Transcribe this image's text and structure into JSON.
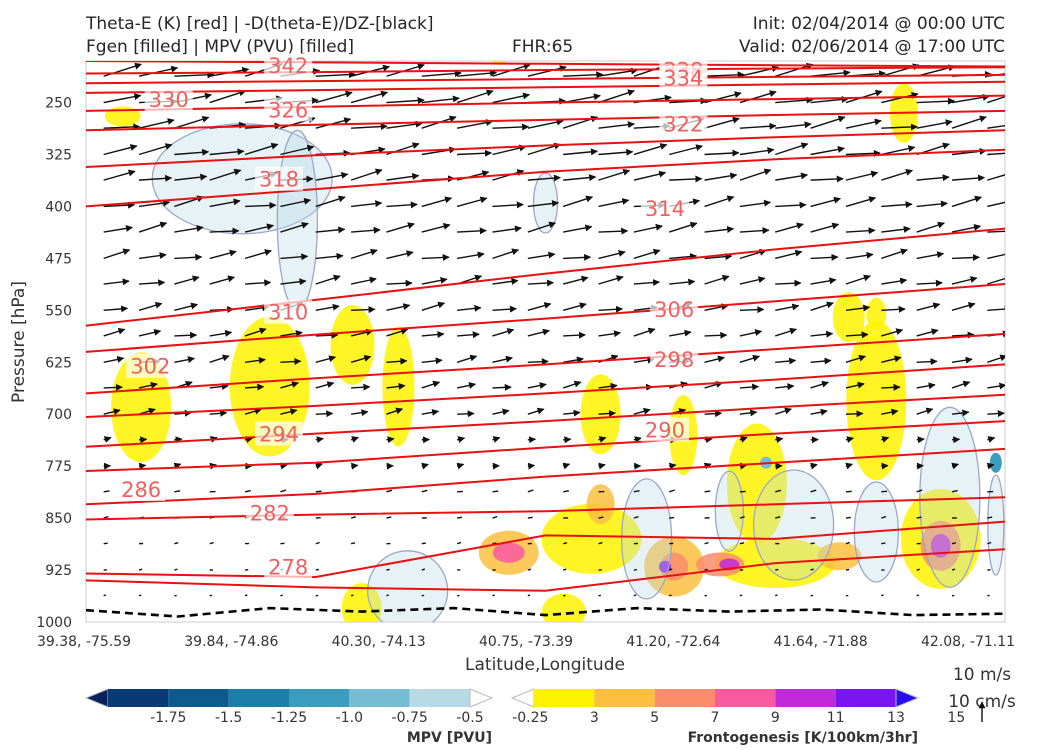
{
  "header": {
    "title_line1": "Theta-E (K) [red] | -D(theta-E)/DZ-[black]",
    "title_line2": "Fgen [filled] | MPV (PVU) [filled]",
    "fhr": "FHR:65",
    "init": "Init: 02/04/2014 @ 00:00 UTC",
    "valid": "Valid: 02/06/2014 @ 17:00 UTC"
  },
  "chart_data": {
    "type": "cross-section",
    "xlabel": "Latitude,Longitude",
    "ylabel": "Pressure [hPa]",
    "x_ticks": [
      "39.38, -75.59",
      "39.84, -74.86",
      "40.30, -74.13",
      "40.75, -73.39",
      "41.20, -72.64",
      "41.64, -71.88",
      "42.08, -71.11"
    ],
    "y_ticks": [
      250,
      325,
      400,
      475,
      550,
      625,
      700,
      775,
      850,
      925,
      1000
    ],
    "ylim": [
      1000,
      190
    ],
    "theta_e_contours": [
      {
        "label": "342",
        "p": [
          190,
          192,
          194,
          196,
          198
        ]
      },
      {
        "label": "338",
        "p": [
          208,
          206,
          203,
          201,
          199
        ]
      },
      {
        "label": "334",
        "p": [
          222,
          219,
          216,
          213,
          210
        ]
      },
      {
        "label": "330",
        "p": [
          236,
          232,
          228,
          224,
          220
        ]
      },
      {
        "label": "326",
        "p": [
          262,
          256,
          250,
          245,
          240
        ]
      },
      {
        "label": "322",
        "p": [
          290,
          282,
          275,
          268,
          262
        ]
      },
      {
        "label": "318",
        "p": [
          343,
          326,
          312,
          300,
          290
        ]
      },
      {
        "label": "314",
        "p": [
          400,
          375,
          350,
          332,
          318
        ]
      },
      {
        "label": "310",
        "p": [
          572,
          535,
          497,
          462,
          432
        ]
      },
      {
        "label": "306",
        "p": [
          610,
          585,
          562,
          537,
          512
        ]
      },
      {
        "label": "302",
        "p": [
          670,
          648,
          628,
          606,
          584
        ]
      },
      {
        "label": "298",
        "p": [
          704,
          688,
          670,
          650,
          628
        ]
      },
      {
        "label": "294",
        "p": [
          747,
          728,
          710,
          690,
          672
        ]
      },
      {
        "label": "290",
        "p": [
          782,
          770,
          748,
          728,
          710
        ]
      },
      {
        "label": "286",
        "p": [
          830,
          815,
          790,
          770,
          750
        ]
      },
      {
        "label": "282",
        "p": [
          852,
          845,
          840,
          830,
          820
        ]
      },
      {
        "label": "278",
        "p": [
          930,
          935,
          875,
          880,
          855
        ]
      },
      {
        "label": "",
        "p": [
          940,
          950,
          955,
          915,
          895
        ]
      }
    ],
    "theta_e_labels": [
      {
        "text": "342",
        "x": 0.22,
        "p": 196
      },
      {
        "text": "338",
        "x": 0.65,
        "p": 202
      },
      {
        "text": "334",
        "x": 0.65,
        "p": 214
      },
      {
        "text": "330",
        "x": 0.09,
        "p": 245
      },
      {
        "text": "326",
        "x": 0.22,
        "p": 260
      },
      {
        "text": "322",
        "x": 0.65,
        "p": 280
      },
      {
        "text": "318",
        "x": 0.21,
        "p": 360
      },
      {
        "text": "314",
        "x": 0.63,
        "p": 402
      },
      {
        "text": "310",
        "x": 0.22,
        "p": 552
      },
      {
        "text": "306",
        "x": 0.64,
        "p": 548
      },
      {
        "text": "302",
        "x": 0.07,
        "p": 630
      },
      {
        "text": "298",
        "x": 0.64,
        "p": 620
      },
      {
        "text": "294",
        "x": 0.21,
        "p": 728
      },
      {
        "text": "290",
        "x": 0.63,
        "p": 722
      },
      {
        "text": "286",
        "x": 0.06,
        "p": 808
      },
      {
        "text": "282",
        "x": 0.2,
        "p": 842
      },
      {
        "text": "278",
        "x": 0.22,
        "p": 920
      }
    ],
    "dthetae_dz_contour": {
      "x": [
        0,
        0.1,
        0.2,
        0.3,
        0.4,
        0.5,
        0.6,
        0.7,
        0.8,
        0.9,
        1.0
      ],
      "p": [
        983,
        992,
        980,
        985,
        980,
        990,
        980,
        985,
        982,
        990,
        988
      ]
    },
    "mpv_colorbar": {
      "title": "MPV [PVU]",
      "labels": [
        "-1.75",
        "-1.5",
        "-1.25",
        "-1.0",
        "-0.75",
        "-0.5",
        "-0.25"
      ],
      "colors": [
        "#08205c",
        "#0a3a76",
        "#0d5a8c",
        "#1a7ea6",
        "#3c9cbe",
        "#76bcd2",
        "#b8dae4",
        "#ffffff"
      ]
    },
    "fgen_colorbar": {
      "title": "Frontogenesis [K/100km/3hr]",
      "labels": [
        "3",
        "5",
        "7",
        "9",
        "11",
        "13",
        "15"
      ],
      "colors": [
        "#ffffff",
        "#fff200",
        "#fcbf40",
        "#fb8c6c",
        "#f85aa0",
        "#c02ad8",
        "#7a14f0",
        "#2a0cf2"
      ]
    },
    "vector_key": {
      "speed_label": "10 m/s",
      "vertical_label": "10 cm/s"
    },
    "colors": {
      "theta_e": "#e81010",
      "label": "#f06060",
      "dthetae": "#000000",
      "mpv_outline": "#9aa8c8",
      "axes": "#cccccc"
    }
  }
}
